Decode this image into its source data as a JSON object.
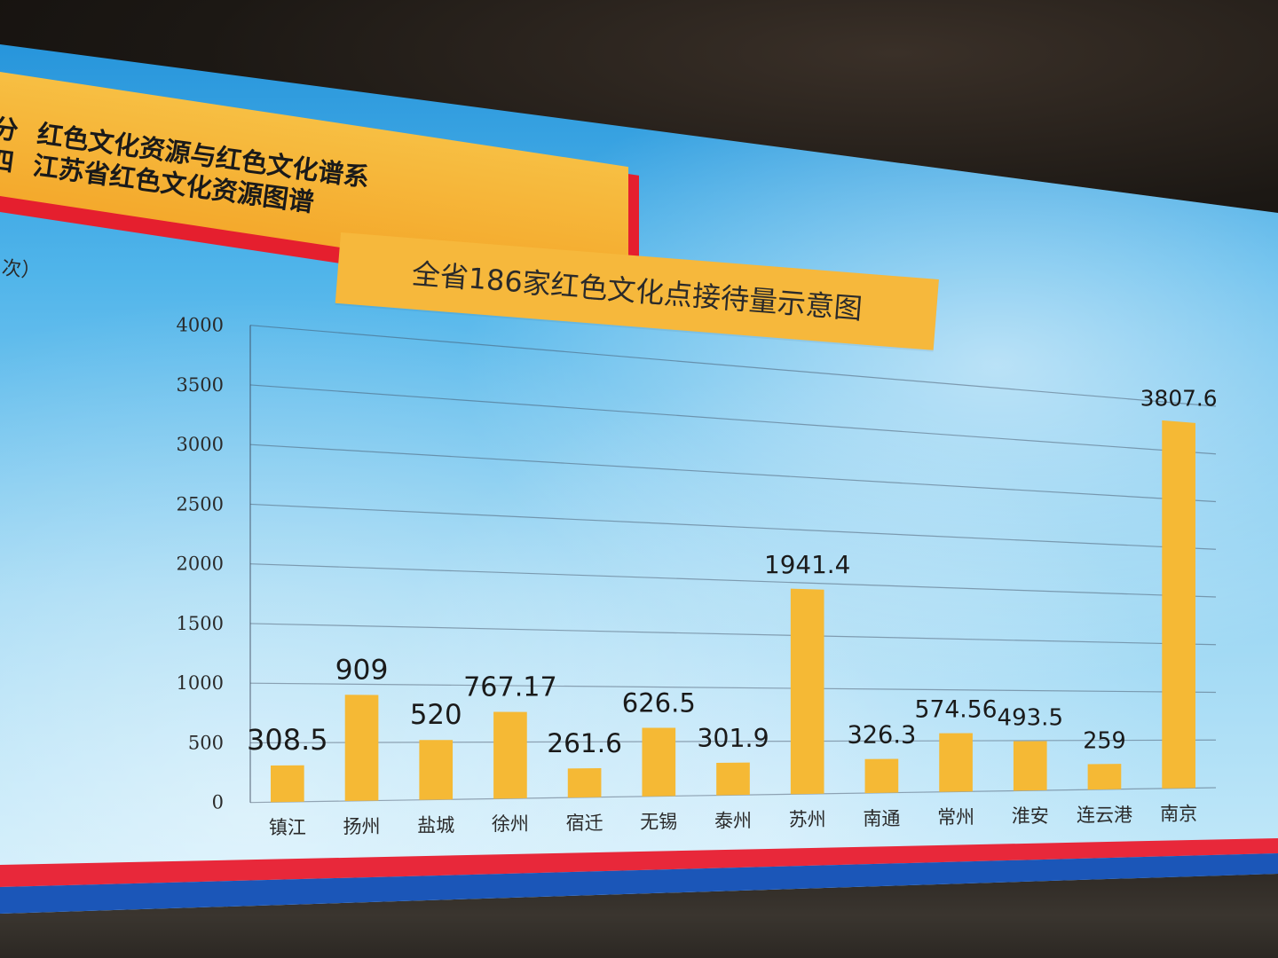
{
  "header": {
    "line1_prefix": "分",
    "line1_text": "红色文化资源与红色文化谱系",
    "line2_prefix": "四",
    "line2_text": "江苏省红色文化资源图谱"
  },
  "chart_data": {
    "type": "bar",
    "title": "全省186家红色文化点接待量示意图",
    "unit_fragment": "次）",
    "categories": [
      "镇江",
      "扬州",
      "盐城",
      "徐州",
      "宿迁",
      "无锡",
      "泰州",
      "苏州",
      "南通",
      "常州",
      "淮安",
      "连云港",
      "南京"
    ],
    "values": [
      308.5,
      909,
      520,
      767.17,
      261.6,
      626.5,
      301.9,
      1941.4,
      326.3,
      574.56,
      493.5,
      259,
      3807.6
    ],
    "value_labels": [
      "308.5",
      "909",
      "520",
      "767.17",
      "261.6",
      "626.5",
      "301.9",
      "1941.4",
      "326.3",
      "574.56",
      "493.5",
      "259",
      "3807.6"
    ],
    "yticks": [
      0,
      500,
      1000,
      1500,
      2000,
      2500,
      3000,
      3500,
      4000
    ],
    "ylim": [
      0,
      4000
    ],
    "bar_color": "#f5b935",
    "grid": true,
    "legend": "none"
  }
}
